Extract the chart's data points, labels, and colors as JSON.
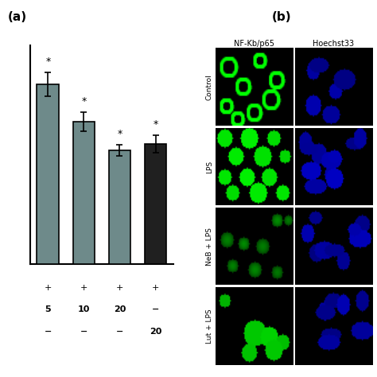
{
  "bar_values": [
    0.82,
    0.65,
    0.52,
    0.55
  ],
  "bar_errors": [
    0.055,
    0.045,
    0.025,
    0.04
  ],
  "bar_colors": [
    "#6e8a8a",
    "#6e8a8a",
    "#6e8a8a",
    "#202020"
  ],
  "x_tick_labels_row1": [
    "+",
    "+",
    "+",
    "+"
  ],
  "x_tick_labels_row2": [
    "5",
    "10",
    "20",
    "−"
  ],
  "x_tick_labels_row3": [
    "−",
    "−",
    "−",
    "20"
  ],
  "panel_label_a": "(a)",
  "panel_label_b": "(b)",
  "col_headers": [
    "NF-Kb/p65",
    "Hoechst33"
  ],
  "row_labels": [
    "Control",
    "LPS",
    "NeB + LPS",
    "Lut + LPS"
  ],
  "background_color": "#ffffff",
  "bar_edge_color": "#000000",
  "axis_linewidth": 1.5,
  "star_annotations": [
    "*",
    "*",
    "*",
    "*"
  ],
  "ylim": [
    0,
    1.0
  ],
  "figsize": [
    4.74,
    4.74
  ],
  "dpi": 100
}
